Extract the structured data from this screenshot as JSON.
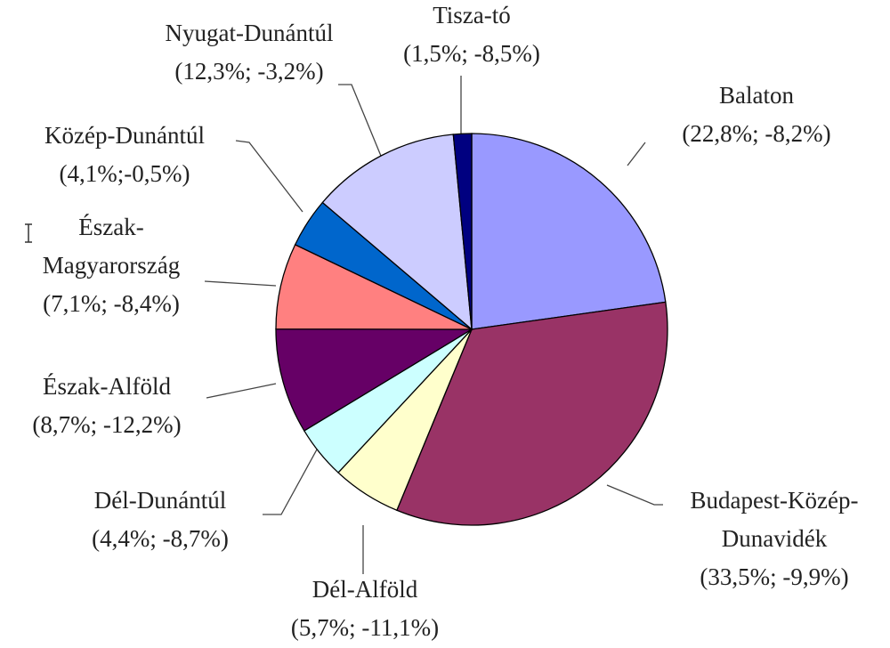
{
  "chart_data": {
    "type": "pie",
    "categories": [
      [
        "Balaton"
      ],
      [
        "Budapest-Közép-",
        "Dunavidék"
      ],
      [
        "Dél-Alföld"
      ],
      [
        "Dél-Dunántúl"
      ],
      [
        "Észak-Alföld"
      ],
      [
        "Észak-",
        "Magyarország"
      ],
      [
        "Közép-Dunántúl"
      ],
      [
        "Nyugat-Dunántúl"
      ],
      [
        "Tisza-tó"
      ]
    ],
    "values": [
      22.8,
      33.5,
      5.7,
      4.4,
      8.7,
      7.1,
      4.1,
      12.3,
      1.5
    ],
    "value_labels": [
      "(22,8%; -8,2%)",
      "(33,5%; -9,9%)",
      "(5,7%; -11,1%)",
      "(4,4%; -8,7%)",
      "(8,7%; -12,2%)",
      "(7,1%; -8,4%)",
      "(4,1%;-0,5%)",
      "(12,3%; -3,2%)",
      "(1,5%; -8,5%)"
    ],
    "colors": [
      "#9999ff",
      "#993366",
      "#ffffcc",
      "#ccffff",
      "#660066",
      "#ff8080",
      "#0066cc",
      "#ccccff",
      "#000080"
    ]
  }
}
